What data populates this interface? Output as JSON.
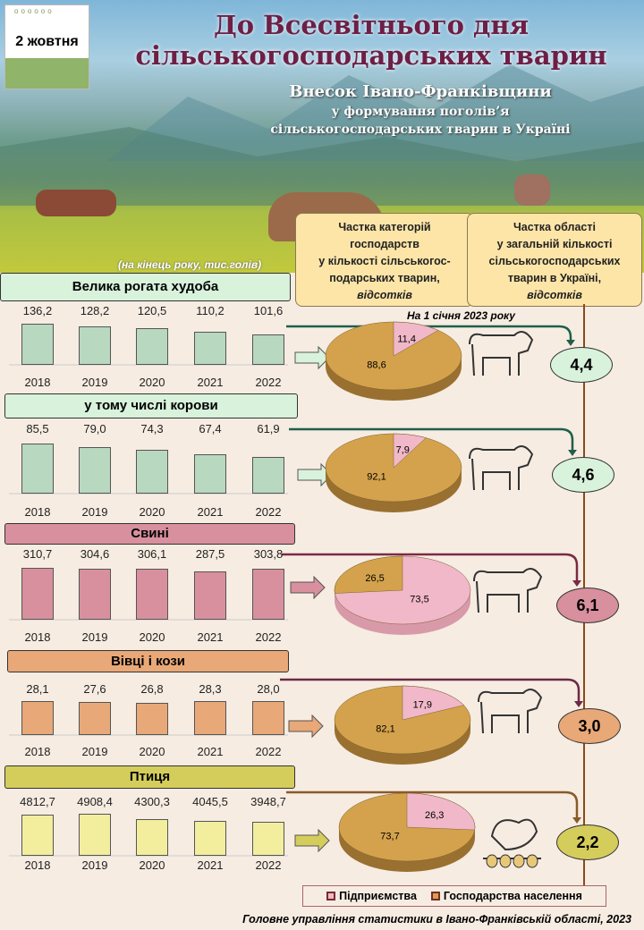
{
  "header": {
    "date": "2 жовтня",
    "title_line1": "До Всесвітнього дня",
    "title_line2": "сільськогосподарських тварин",
    "subtitle1": "Внесок Івано-Франківщини",
    "subtitle2": "у формування поголів’я",
    "subtitle3": "сільськогосподарських тварин в Україні"
  },
  "unit_note": "(на кінець року, тис.голів)",
  "column1": {
    "l1": "Частка  категорій",
    "l2": "господарств",
    "l3": "у кількості сільськогос-",
    "l4": "подарських тварин,",
    "l5": "відсотків"
  },
  "column2": {
    "l1": "Частка  області",
    "l2": "у загальній  кількості",
    "l3": "сільськогосподарських",
    "l4": "тварин   в Україні,",
    "l5": "відсотків"
  },
  "date_note": "На 1 січня 2023  року",
  "legend": {
    "enterprises": "Підприємства",
    "households": "Господарства населення",
    "enterprises_color": "#f0b8c8",
    "households_color": "#d4a24c"
  },
  "footer": "Головне управління статистики в Івано-Франківській області, 2023",
  "chart_data": [
    {
      "type": "bar",
      "title": "Велика рогата худоба",
      "categories": [
        "2018",
        "2019",
        "2020",
        "2021",
        "2022"
      ],
      "values": [
        136.2,
        128.2,
        120.5,
        110.2,
        101.6
      ],
      "labels": [
        "136,2",
        "128,2",
        "120,5",
        "110,2",
        "101,6"
      ],
      "color": "#b8d8c0",
      "header_color": "#d8f2dc",
      "pie": {
        "type": "pie",
        "enterprises": 11.4,
        "households": 88.6,
        "labels": [
          "11,4",
          "88,6"
        ]
      },
      "region_share": "4,4",
      "circle_color": "#d8f2dc",
      "line_color": "#1f5f4a",
      "animal": "cattle"
    },
    {
      "type": "bar",
      "title": "у тому числі корови",
      "categories": [
        "2018",
        "2019",
        "2020",
        "2021",
        "2022"
      ],
      "values": [
        85.5,
        79.0,
        74.3,
        67.4,
        61.9
      ],
      "labels": [
        "85,5",
        "79,0",
        "74,3",
        "67,4",
        "61,9"
      ],
      "color": "#b8d8c0",
      "header_color": "#d8f2dc",
      "pie": {
        "type": "pie",
        "enterprises": 7.9,
        "households": 92.1,
        "labels": [
          "7,9",
          "92,1"
        ]
      },
      "region_share": "4,6",
      "circle_color": "#d8f2dc",
      "line_color": "#1f5f4a",
      "animal": "cow"
    },
    {
      "type": "bar",
      "title": "Свині",
      "categories": [
        "2018",
        "2019",
        "2020",
        "2021",
        "2022"
      ],
      "values": [
        310.7,
        304.6,
        306.1,
        287.5,
        303.8
      ],
      "labels": [
        "310,7",
        "304,6",
        "306,1",
        "287,5",
        "303,8"
      ],
      "color": "#d8909e",
      "header_color": "#d8909e",
      "pie": {
        "type": "pie",
        "enterprises": 73.5,
        "households": 26.5,
        "labels": [
          "73,5",
          "26,5"
        ]
      },
      "region_share": "6,1",
      "circle_color": "#d8909e",
      "line_color": "#7a2a45",
      "animal": "pig"
    },
    {
      "type": "bar",
      "title": "Вівці і кози",
      "categories": [
        "2018",
        "2019",
        "2020",
        "2021",
        "2022"
      ],
      "values": [
        28.1,
        27.6,
        26.8,
        28.3,
        28.0
      ],
      "labels": [
        "28,1",
        "27,6",
        "26,8",
        "28,3",
        "28,0"
      ],
      "color": "#e8a878",
      "header_color": "#e8a878",
      "pie": {
        "type": "pie",
        "enterprises": 17.9,
        "households": 82.1,
        "labels": [
          "17,9",
          "82,1"
        ]
      },
      "region_share": "3,0",
      "circle_color": "#e8a878",
      "line_color": "#6a2a45",
      "animal": "sheep"
    },
    {
      "type": "bar",
      "title": "Птиця",
      "categories": [
        "2018",
        "2019",
        "2020",
        "2021",
        "2022"
      ],
      "values": [
        4812.7,
        4908.4,
        4300.3,
        4045.5,
        3948.7
      ],
      "labels": [
        "4812,7",
        "4908,4",
        "4300,3",
        "4045,5",
        "3948,7"
      ],
      "color": "#f2ee9e",
      "header_color": "#d4cd5c",
      "pie": {
        "type": "pie",
        "enterprises": 26.3,
        "households": 73.7,
        "labels": [
          "26,3",
          "73,7"
        ]
      },
      "region_share": "2,2",
      "circle_color": "#d4cd5c",
      "line_color": "#8a5a2a",
      "animal": "chicken"
    }
  ]
}
